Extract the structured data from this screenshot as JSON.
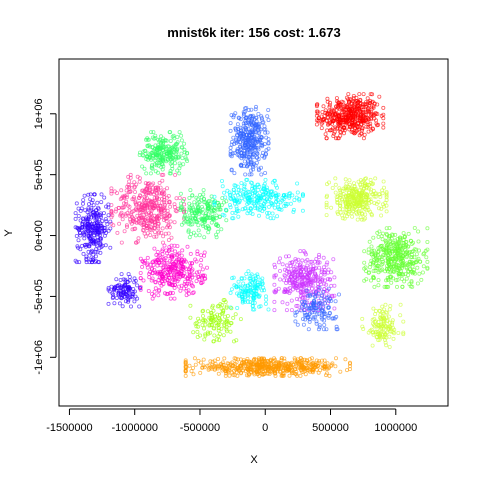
{
  "chart_data": {
    "type": "scatter",
    "title": "mnist6k iter: 156 cost: 1.673",
    "xlabel": "X",
    "ylabel": "Y",
    "xlim": [
      -1580000,
      1400000
    ],
    "ylim": [
      -1400000,
      1450000
    ],
    "x_ticks": [
      {
        "value": -1500000,
        "label": "-1500000"
      },
      {
        "value": -1000000,
        "label": "-1000000"
      },
      {
        "value": -500000,
        "label": "-500000"
      },
      {
        "value": 0,
        "label": "0"
      },
      {
        "value": 500000,
        "label": "500000"
      },
      {
        "value": 1000000,
        "label": "1000000"
      }
    ],
    "y_ticks": [
      {
        "value": -1000000,
        "label": "-1e+06"
      },
      {
        "value": -500000,
        "label": "-5e+05"
      },
      {
        "value": 0,
        "label": "0e+00"
      },
      {
        "value": 500000,
        "label": "5e+05"
      },
      {
        "value": 1000000,
        "label": "1e+06"
      }
    ],
    "grid": false,
    "point_style": "hollow-circle",
    "clusters": [
      {
        "color": "#FF0000",
        "center": [
          650000,
          980000
        ],
        "spread": [
          210000,
          150000
        ],
        "count": 440
      },
      {
        "color": "#3366FF",
        "center": [
          -120000,
          780000
        ],
        "spread": [
          120000,
          230000
        ],
        "count": 330
      },
      {
        "color": "#FF3399",
        "center": [
          -900000,
          220000
        ],
        "spread": [
          230000,
          230000
        ],
        "count": 380
      },
      {
        "color": "#3300FF",
        "center": [
          -1320000,
          60000
        ],
        "spread": [
          110000,
          230000
        ],
        "count": 260
      },
      {
        "color": "#3300FF",
        "center": [
          -1080000,
          -450000
        ],
        "spread": [
          100000,
          110000
        ],
        "count": 110
      },
      {
        "color": "#33FF66",
        "center": [
          -780000,
          680000
        ],
        "spread": [
          150000,
          140000
        ],
        "count": 230
      },
      {
        "color": "#33FF66",
        "center": [
          -480000,
          180000
        ],
        "spread": [
          150000,
          160000
        ],
        "count": 190
      },
      {
        "color": "#66FF33",
        "center": [
          1000000,
          -180000
        ],
        "spread": [
          200000,
          200000
        ],
        "count": 380
      },
      {
        "color": "#CCFF33",
        "center": [
          700000,
          300000
        ],
        "spread": [
          190000,
          140000
        ],
        "count": 300
      },
      {
        "color": "#CCFF33",
        "center": [
          900000,
          -750000
        ],
        "spread": [
          130000,
          150000
        ],
        "count": 120
      },
      {
        "color": "#FF9900",
        "center": [
          20000,
          -1080000
        ],
        "spread": [
          520000,
          60000
        ],
        "count": 520
      },
      {
        "color": "#CC33FF",
        "center": [
          300000,
          -370000
        ],
        "spread": [
          190000,
          200000
        ],
        "count": 320
      },
      {
        "color": "#FF00CC",
        "center": [
          -700000,
          -300000
        ],
        "spread": [
          210000,
          180000
        ],
        "count": 300
      },
      {
        "color": "#00FFFF",
        "center": [
          -50000,
          300000
        ],
        "spread": [
          280000,
          130000
        ],
        "count": 240
      },
      {
        "color": "#00FFFF",
        "center": [
          -120000,
          -450000
        ],
        "spread": [
          120000,
          130000
        ],
        "count": 130
      },
      {
        "color": "#99FF00",
        "center": [
          -380000,
          -700000
        ],
        "spread": [
          160000,
          140000
        ],
        "count": 110
      },
      {
        "color": "#3366FF",
        "center": [
          400000,
          -600000
        ],
        "spread": [
          140000,
          140000
        ],
        "count": 120
      }
    ]
  }
}
